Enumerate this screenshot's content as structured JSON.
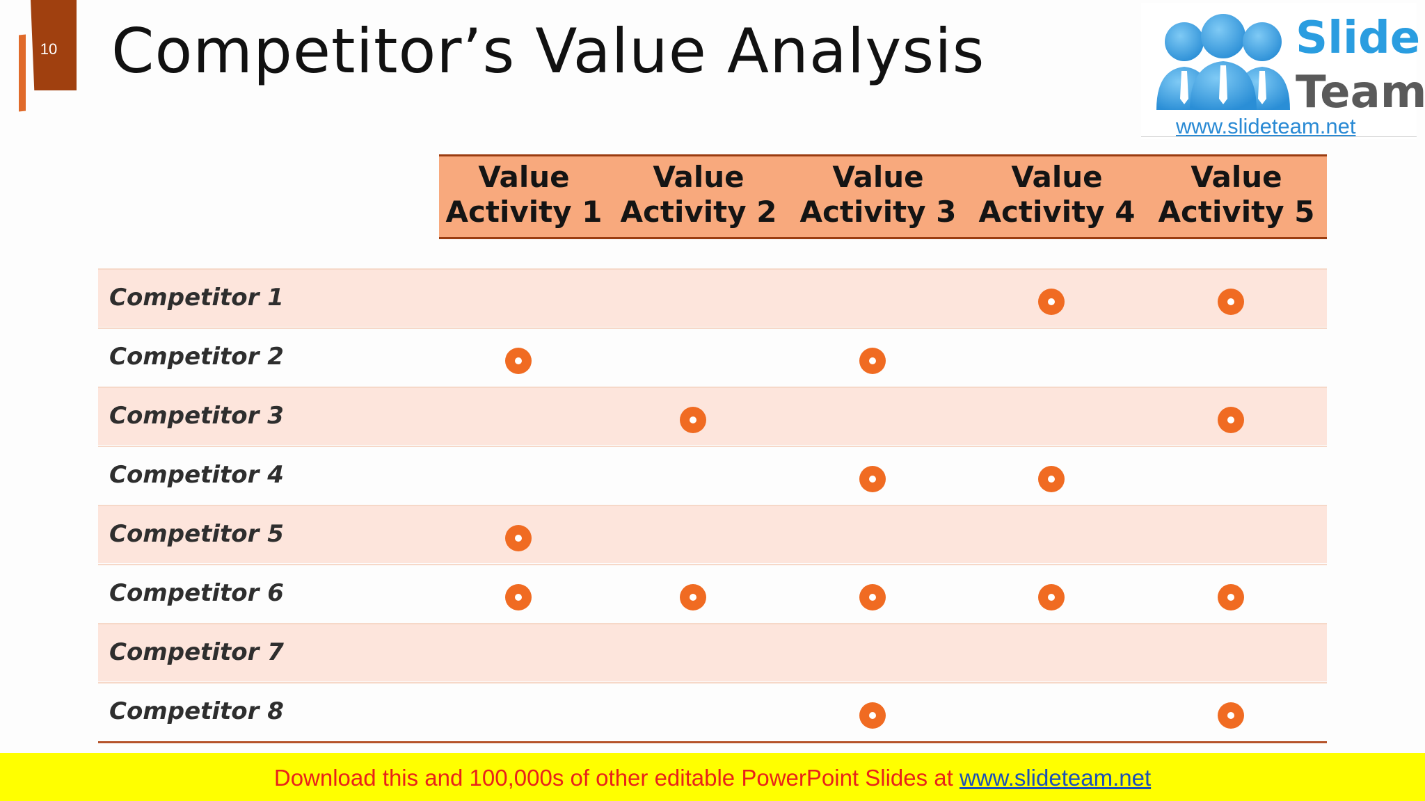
{
  "slide": {
    "number": "10",
    "title": "Competitor’s Value Analysis"
  },
  "logo": {
    "word1": "Slide",
    "word2": "Team",
    "url": "www.slideteam.net"
  },
  "table": {
    "columns": [
      {
        "line1": "Value",
        "line2": "Activity 1"
      },
      {
        "line1": "Value",
        "line2": "Activity 2"
      },
      {
        "line1": "Value",
        "line2": "Activity 3"
      },
      {
        "line1": "Value",
        "line2": "Activity 4"
      },
      {
        "line1": "Value",
        "line2": "Activity 5"
      }
    ],
    "rows": [
      {
        "label": "Competitor 1",
        "marks": [
          false,
          false,
          false,
          true,
          true
        ]
      },
      {
        "label": "Competitor 2",
        "marks": [
          true,
          false,
          true,
          false,
          false
        ]
      },
      {
        "label": "Competitor 3",
        "marks": [
          false,
          true,
          false,
          false,
          true
        ]
      },
      {
        "label": "Competitor 4",
        "marks": [
          false,
          false,
          true,
          true,
          false
        ]
      },
      {
        "label": "Competitor 5",
        "marks": [
          true,
          false,
          false,
          false,
          false
        ]
      },
      {
        "label": "Competitor 6",
        "marks": [
          true,
          true,
          true,
          true,
          true
        ]
      },
      {
        "label": "Competitor 7",
        "marks": [
          false,
          false,
          false,
          false,
          false
        ]
      },
      {
        "label": "Competitor 8",
        "marks": [
          false,
          false,
          true,
          false,
          true
        ]
      }
    ],
    "mark_icon": "orange-ring-dot-icon"
  },
  "banner": {
    "text": "Download this and 100,000s of other editable PowerPoint Slides at ",
    "link": "www.slideteam.net"
  },
  "colors": {
    "accent": "#f06b22",
    "header_fill": "#f8a97d",
    "row_shade": "#fde5dc",
    "tab": "#a0400f",
    "banner": "#ffff00"
  }
}
